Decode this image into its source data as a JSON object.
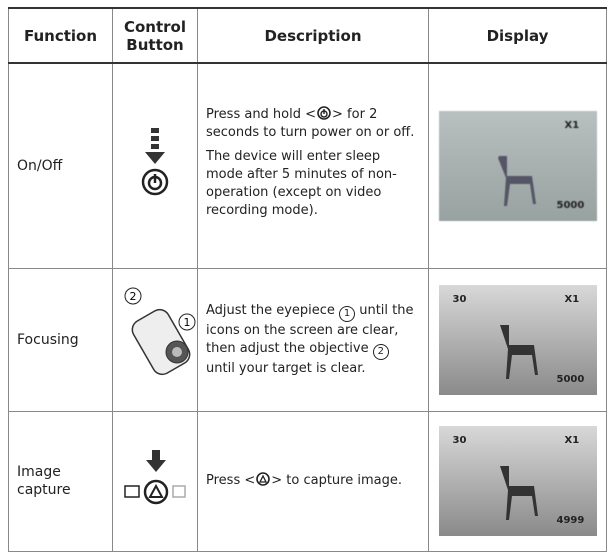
{
  "header": {
    "function": "Function",
    "control": "Control Button",
    "description": "Description",
    "display": "Display"
  },
  "rows": [
    {
      "function": "On/Off",
      "description": {
        "p1": [
          "Press and hold <",
          "> for 2 seconds to turn power on or off."
        ],
        "p2": "The device will enter sleep mode after 5 minutes of non-operation (except on video recording mode)."
      },
      "display": {
        "zoom": "X1",
        "count": "5000"
      }
    },
    {
      "function": "Focusing",
      "control": {
        "labels": [
          "2",
          "1"
        ]
      },
      "description": {
        "parts": [
          "Adjust the eyepiece ",
          "1",
          " until the icons on the screen are clear, then adjust the objective ",
          "2",
          " until your target is clear."
        ]
      },
      "display": {
        "mem": "30",
        "zoom": "X1",
        "count": "5000"
      }
    },
    {
      "function": "Image capture",
      "description": {
        "parts": [
          "Press <",
          "> to capture image."
        ]
      },
      "display": {
        "mem": "30",
        "zoom": "X1",
        "count": "4999"
      }
    }
  ]
}
